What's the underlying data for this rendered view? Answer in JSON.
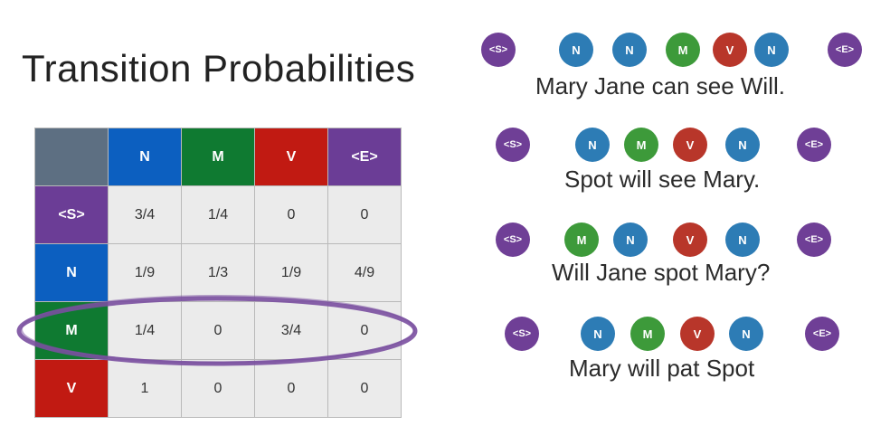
{
  "title": "Transition Probabilities",
  "table": {
    "columns": [
      "N",
      "M",
      "V",
      "<E>"
    ],
    "rows": [
      {
        "label": "<S>",
        "values": [
          "3/4",
          "1/4",
          "0",
          "0"
        ]
      },
      {
        "label": "N",
        "values": [
          "1/9",
          "1/3",
          "1/9",
          "4/9"
        ]
      },
      {
        "label": "M",
        "values": [
          "1/4",
          "0",
          "3/4",
          "0"
        ]
      },
      {
        "label": "V",
        "values": [
          "1",
          "0",
          "0",
          "0"
        ]
      }
    ],
    "highlighted_row": "M"
  },
  "sentences": [
    {
      "tags": [
        "<S>",
        "N",
        "N",
        "M",
        "V",
        "N",
        "<E>"
      ],
      "text": "Mary Jane can see Will."
    },
    {
      "tags": [
        "<S>",
        "N",
        "M",
        "V",
        "N",
        "<E>"
      ],
      "text": "Spot will see Mary."
    },
    {
      "tags": [
        "<S>",
        "M",
        "N",
        "V",
        "N",
        "<E>"
      ],
      "text": "Will Jane spot Mary?"
    },
    {
      "tags": [
        "<S>",
        "N",
        "M",
        "V",
        "N",
        "<E>"
      ],
      "text": "Mary will pat Spot"
    }
  ],
  "colors": {
    "N": "#0c5fc0",
    "M": "#0f7a31",
    "V": "#c11a12",
    "start_end": "#6b3d96",
    "highlight_oval": "#7a4fa0"
  }
}
